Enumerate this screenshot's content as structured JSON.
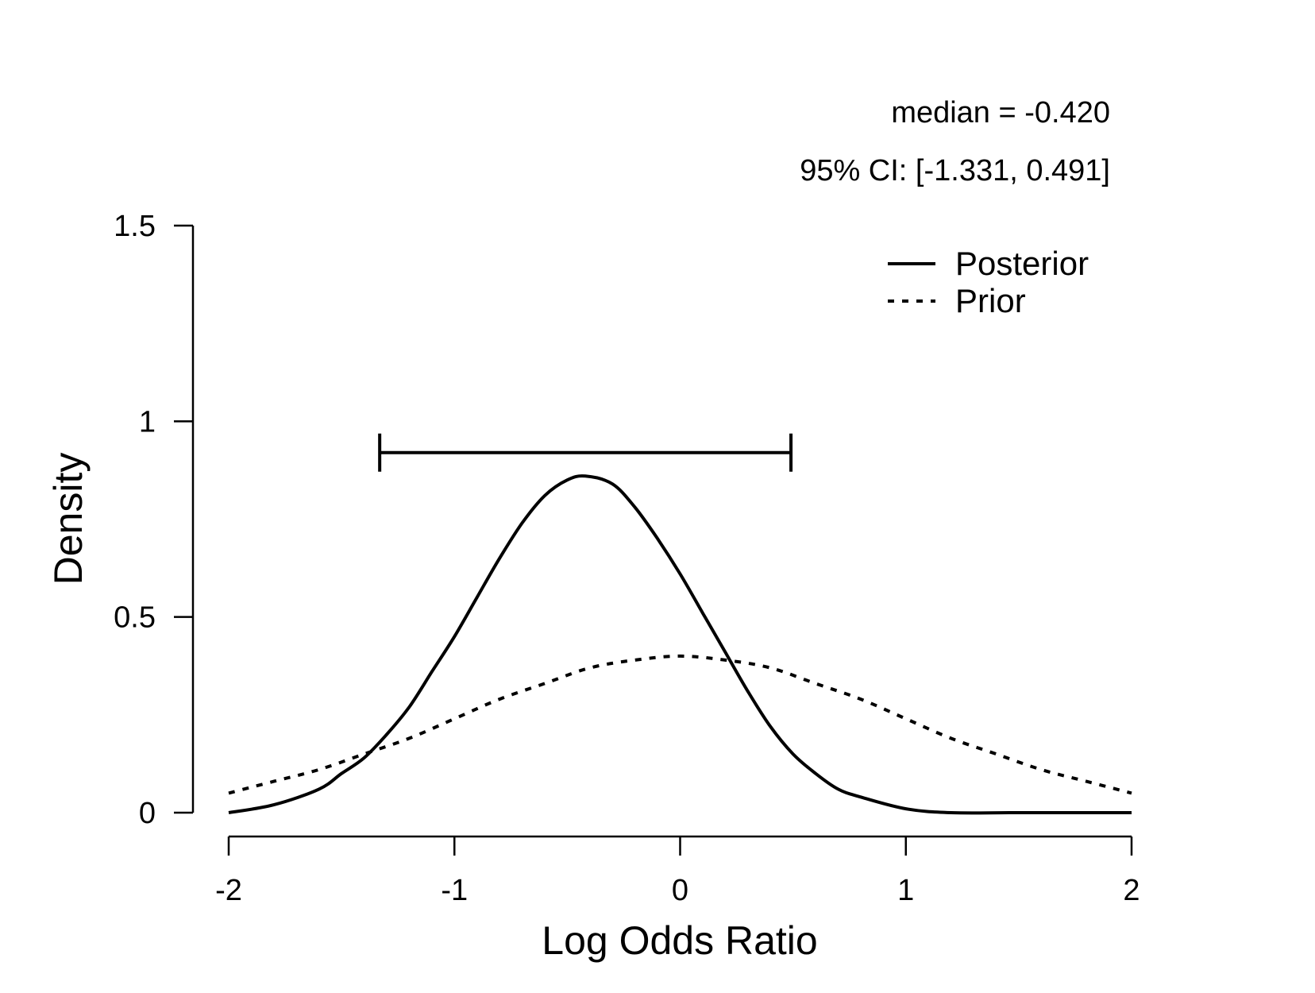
{
  "chart_data": {
    "type": "line",
    "xlabel": "Log Odds Ratio",
    "ylabel": "Density",
    "xlim": [
      -2,
      2
    ],
    "ylim": [
      0,
      1.5
    ],
    "x_ticks": [
      -2,
      -1,
      0,
      1,
      2
    ],
    "x_tick_labels": [
      "-2",
      "-1",
      "0",
      "1",
      "2"
    ],
    "y_ticks": [
      0,
      0.5,
      1,
      1.5
    ],
    "y_tick_labels": [
      "0",
      "0.5",
      "1",
      "1.5"
    ],
    "grid": false,
    "legend_position": "top-right",
    "series": [
      {
        "name": "Posterior",
        "line_style": "solid",
        "x": [
          -2.0,
          -1.8,
          -1.6,
          -1.5,
          -1.4,
          -1.3,
          -1.2,
          -1.1,
          -1.0,
          -0.9,
          -0.8,
          -0.7,
          -0.6,
          -0.5,
          -0.42,
          -0.3,
          -0.2,
          -0.1,
          0.0,
          0.1,
          0.2,
          0.3,
          0.4,
          0.5,
          0.6,
          0.7,
          0.8,
          1.0,
          1.2,
          1.5,
          2.0
        ],
        "y": [
          0.0,
          0.02,
          0.06,
          0.1,
          0.14,
          0.2,
          0.27,
          0.36,
          0.45,
          0.55,
          0.65,
          0.74,
          0.81,
          0.85,
          0.86,
          0.84,
          0.78,
          0.7,
          0.61,
          0.51,
          0.41,
          0.31,
          0.22,
          0.15,
          0.1,
          0.06,
          0.04,
          0.01,
          0.0,
          0.0,
          0.0
        ]
      },
      {
        "name": "Prior",
        "line_style": "dotted",
        "x": [
          -2.0,
          -1.8,
          -1.6,
          -1.4,
          -1.2,
          -1.0,
          -0.8,
          -0.6,
          -0.4,
          -0.2,
          0.0,
          0.2,
          0.4,
          0.6,
          0.8,
          1.0,
          1.2,
          1.4,
          1.6,
          1.8,
          2.0
        ],
        "y": [
          0.05,
          0.08,
          0.11,
          0.15,
          0.19,
          0.24,
          0.29,
          0.33,
          0.37,
          0.39,
          0.4,
          0.39,
          0.37,
          0.33,
          0.29,
          0.24,
          0.19,
          0.15,
          0.11,
          0.08,
          0.05
        ]
      }
    ],
    "credible_interval": {
      "lower": -1.331,
      "upper": 0.491,
      "y": 0.92
    },
    "annotations": {
      "median_text": "median = -0.420",
      "ci_text": "95% CI: [-1.331, 0.491]"
    }
  }
}
